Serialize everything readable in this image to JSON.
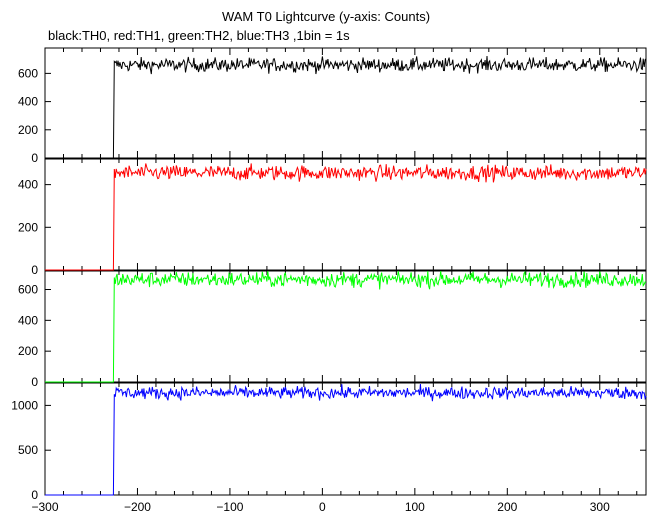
{
  "title": "WAM T0 Lightcurve (y-axis: Counts)",
  "subtitle": "black:TH0, red:TH1, green:TH2, blue:TH3 ,1bin = 1s",
  "chart_data": {
    "type": "line",
    "title": "WAM T0 Lightcurve (y-axis: Counts)",
    "subtitle": "black:TH0, red:TH1, green:TH2, blue:TH3 ,1bin = 1s",
    "xlim": [
      -300,
      350
    ],
    "xticks": [
      -300,
      -200,
      -100,
      0,
      100,
      200,
      300
    ],
    "x_tick_labels": [
      "−300",
      "−200",
      "−100",
      "0",
      "100",
      "200",
      "300"
    ],
    "bin_size_s": 1,
    "series": [
      {
        "name": "TH0",
        "color": "#000000",
        "ylim": [
          0,
          780
        ],
        "yticks": [
          0,
          200,
          400,
          600
        ],
        "step_time": -225,
        "pre_level": 0,
        "post_level": 660,
        "noise": 25
      },
      {
        "name": "TH1",
        "color": "#ff0000",
        "ylim": [
          0,
          520
        ],
        "yticks": [
          0,
          200,
          400
        ],
        "step_time": -225,
        "pre_level": 0,
        "post_level": 455,
        "noise": 18
      },
      {
        "name": "TH2",
        "color": "#00ff00",
        "ylim": [
          0,
          720
        ],
        "yticks": [
          0,
          200,
          400,
          600
        ],
        "step_time": -225,
        "pre_level": 0,
        "post_level": 665,
        "noise": 25
      },
      {
        "name": "TH3",
        "color": "#0000ff",
        "ylim": [
          0,
          1250
        ],
        "yticks": [
          0,
          500,
          1000
        ],
        "step_time": -225,
        "pre_level": 0,
        "post_level": 1140,
        "noise": 35
      }
    ]
  }
}
